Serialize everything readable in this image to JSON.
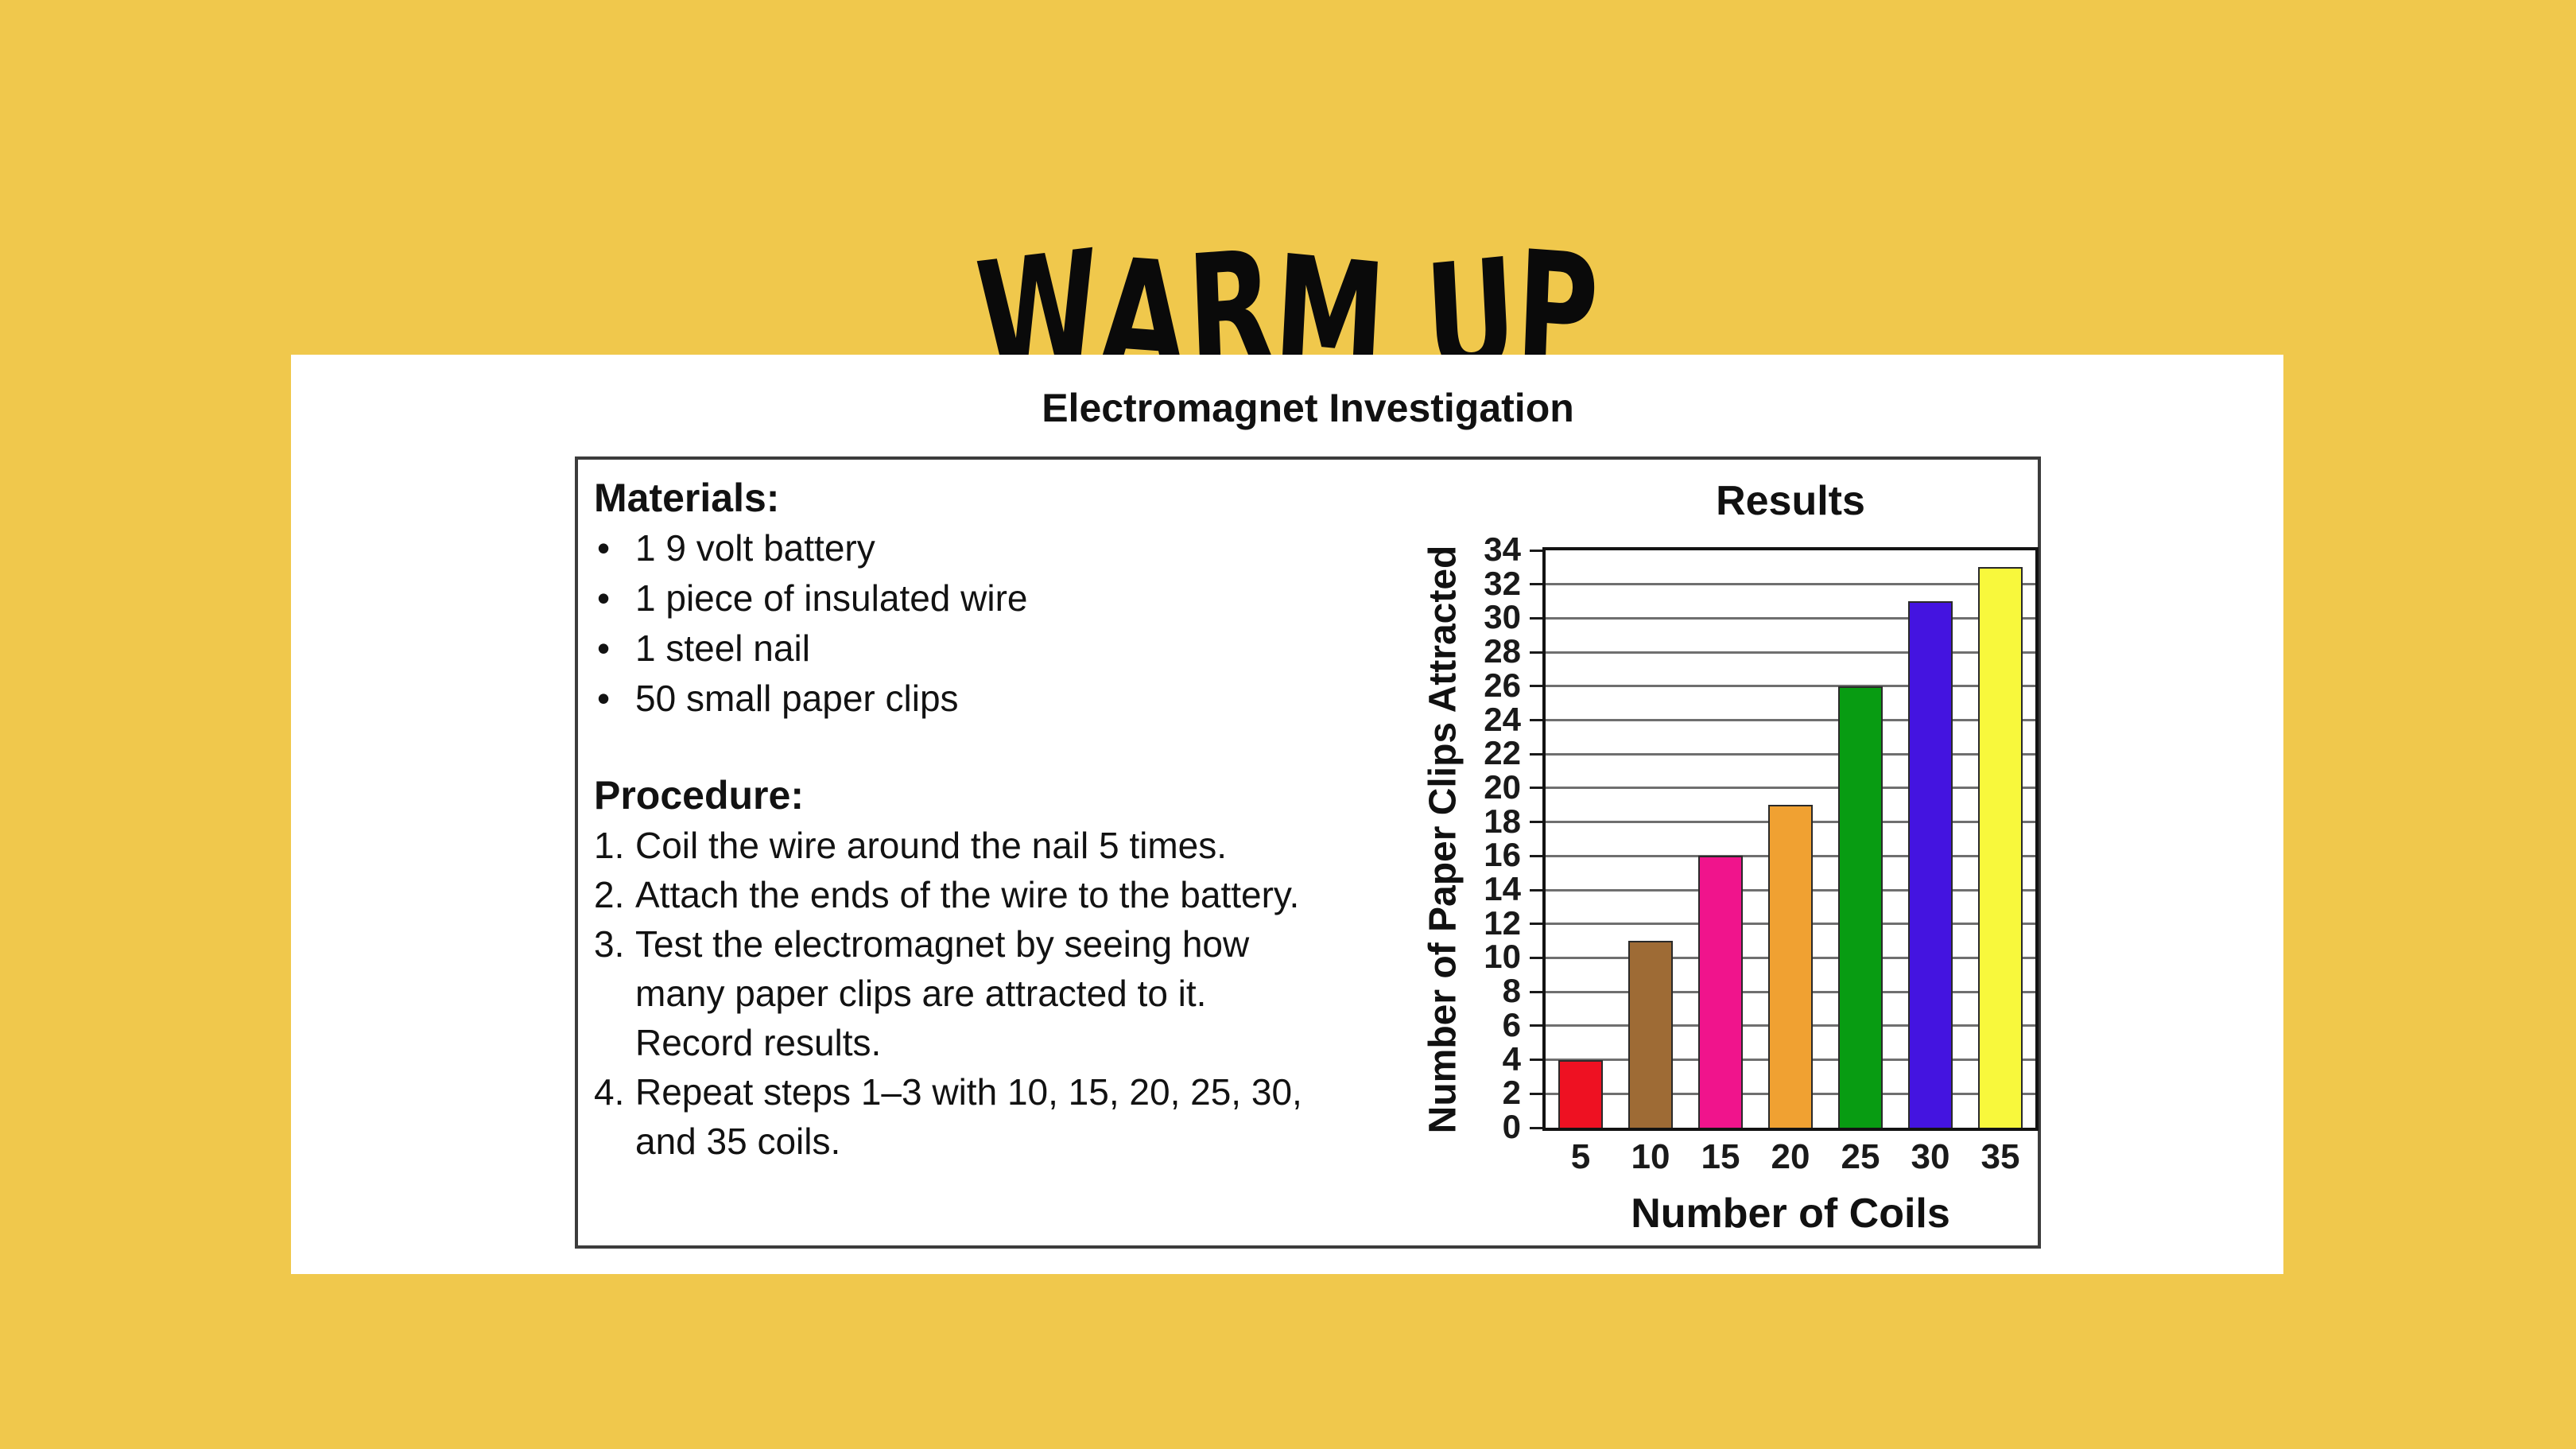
{
  "page": {
    "background_color": "#f0c84c",
    "title": "WARM UP"
  },
  "panel": {
    "title": "Electromagnet Investigation",
    "materials": {
      "heading": "Materials:",
      "bullet_icon": "•",
      "items": [
        "1 9 volt battery",
        "1 piece of insulated wire",
        "1 steel nail",
        "50 small paper clips"
      ]
    },
    "procedure": {
      "heading": "Procedure:",
      "steps": [
        {
          "number": "1.",
          "lines": [
            "Coil the wire around the nail 5 times."
          ]
        },
        {
          "number": "2.",
          "lines": [
            "Attach the ends of the wire to the battery."
          ]
        },
        {
          "number": "3.",
          "lines": [
            "Test the electromagnet by seeing how",
            "many paper clips are attracted to it.",
            "Record results."
          ]
        },
        {
          "number": "4.",
          "lines": [
            "Repeat steps 1–3 with 10, 15, 20, 25, 30,",
            "and 35 coils."
          ]
        }
      ]
    }
  },
  "chart_data": {
    "type": "bar",
    "title": "Results",
    "xlabel": "Number of Coils",
    "ylabel": "Number of Paper Clips Attracted",
    "categories": [
      "5",
      "10",
      "15",
      "20",
      "25",
      "30",
      "35"
    ],
    "values": [
      4,
      11,
      16,
      19,
      26,
      31,
      33
    ],
    "bar_colors": [
      "#ee1122",
      "#9e6b35",
      "#f0148c",
      "#f0a132",
      "#089c12",
      "#4414e0",
      "#f8f83c"
    ],
    "ylim": [
      0,
      34
    ],
    "ytick_step": 2,
    "grid": {
      "horizontal": true,
      "vertical": false,
      "color": "#6f6f6f"
    },
    "legend": "none"
  }
}
